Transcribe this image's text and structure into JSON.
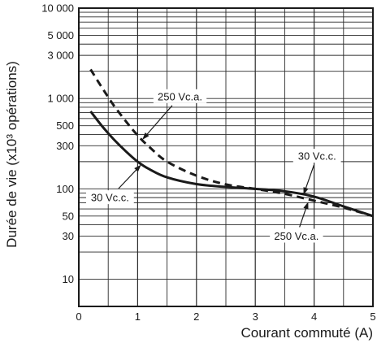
{
  "chart_data": {
    "type": "line",
    "title": "",
    "xlabel": "Courant commuté (A)",
    "ylabel": "Durée de vie (x10³ opérations)",
    "xlim": [
      0,
      5
    ],
    "ylim": [
      5,
      10000
    ],
    "y_scale": "log",
    "grid": true,
    "x_ticks": [
      {
        "value": 0,
        "label": "0"
      },
      {
        "value": 1,
        "label": "1"
      },
      {
        "value": 2,
        "label": "2"
      },
      {
        "value": 3,
        "label": "3"
      },
      {
        "value": 4,
        "label": "4"
      },
      {
        "value": 5,
        "label": "5"
      }
    ],
    "y_tick_labels": [
      {
        "value": 10000,
        "label": "10 000"
      },
      {
        "value": 5000,
        "label": "5 000"
      },
      {
        "value": 3000,
        "label": "3 000"
      },
      {
        "value": 1000,
        "label": "1 000"
      },
      {
        "value": 500,
        "label": "500"
      },
      {
        "value": 300,
        "label": "300"
      },
      {
        "value": 100,
        "label": "100"
      },
      {
        "value": 50,
        "label": "50"
      },
      {
        "value": 30,
        "label": "30"
      },
      {
        "value": 10,
        "label": "10"
      }
    ],
    "series": [
      {
        "label": "250 Vc.a.",
        "style": "dashed",
        "color": "#1a1a1a",
        "x": [
          0.2,
          0.4,
          0.6,
          0.8,
          1.0,
          1.2,
          1.5,
          2.0,
          2.5,
          3.0,
          3.5,
          4.0,
          4.5,
          5.0
        ],
        "y": [
          2100,
          1300,
          830,
          560,
          390,
          290,
          200,
          140,
          112,
          100,
          88,
          74,
          62,
          50
        ]
      },
      {
        "label": "30 Vc.c.",
        "style": "solid",
        "color": "#1a1a1a",
        "x": [
          0.2,
          0.4,
          0.6,
          0.8,
          1.0,
          1.2,
          1.5,
          2.0,
          2.5,
          3.0,
          3.5,
          4.0,
          4.5,
          5.0
        ],
        "y": [
          720,
          490,
          350,
          260,
          200,
          165,
          134,
          113,
          105,
          100,
          94,
          82,
          64,
          50
        ]
      }
    ],
    "annotations": [
      {
        "text": "250 Vc.a.",
        "x": 1.72,
        "y": 1050,
        "point_x": 1.08,
        "point_y": 350
      },
      {
        "text": "30 Vc.c.",
        "x": 0.53,
        "y": 80,
        "point_x": 1.06,
        "point_y": 185
      },
      {
        "text": "30 Vc.c.",
        "x": 4.05,
        "y": 230,
        "point_x": 3.82,
        "point_y": 86
      },
      {
        "text": "250 Vc.a.",
        "x": 3.7,
        "y": 30,
        "point_x": 3.9,
        "point_y": 72
      }
    ]
  }
}
